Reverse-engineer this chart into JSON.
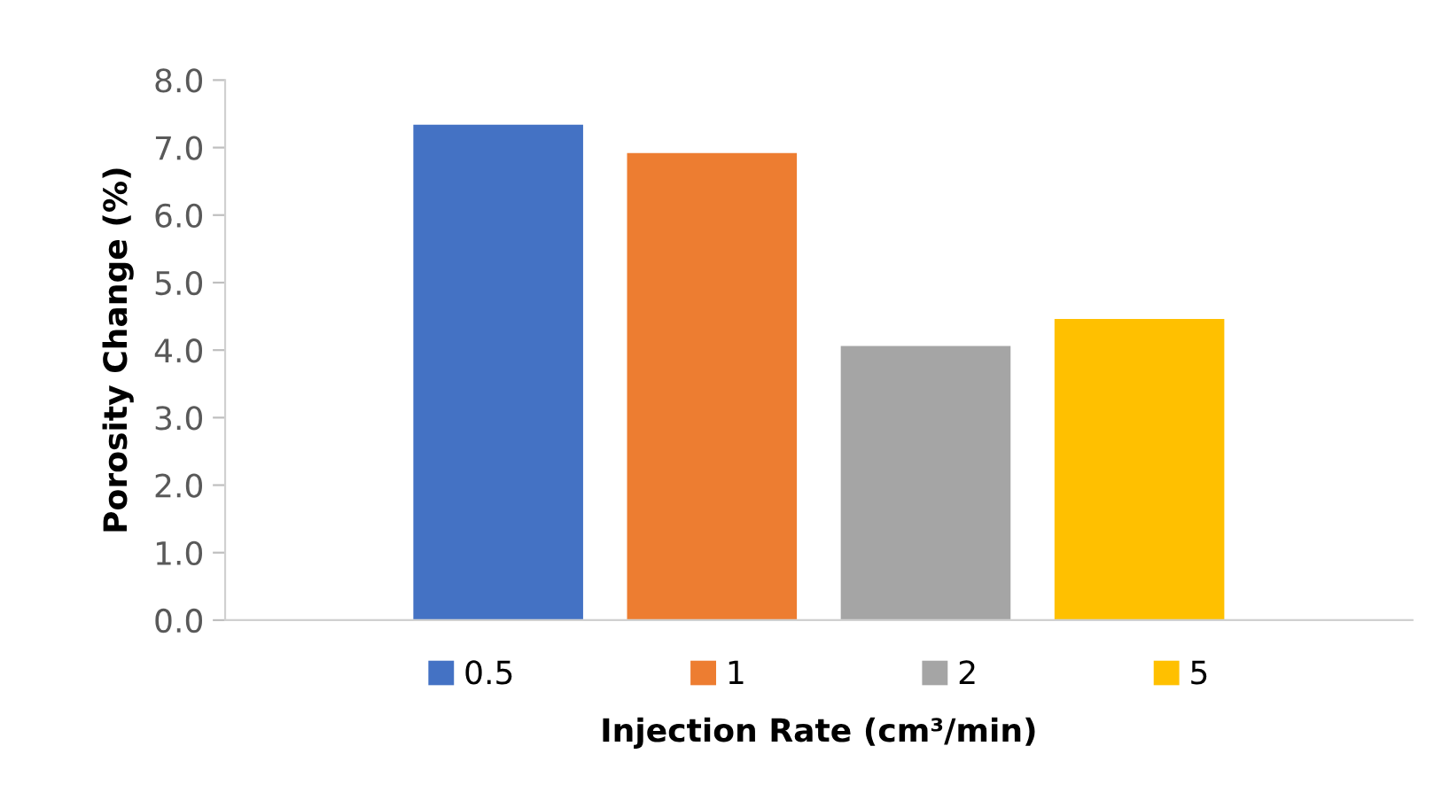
{
  "chart_data": {
    "type": "bar",
    "xlabel": "Injection Rate (cm³/min)",
    "ylabel": "Porosity Change (%)",
    "categories": [
      null
    ],
    "series": [
      {
        "name": "0.5",
        "color": "#4472c4",
        "values": [
          7.34
        ]
      },
      {
        "name": "1",
        "color": "#ed7d31",
        "values": [
          6.92
        ]
      },
      {
        "name": "2",
        "color": "#a5a5a5",
        "values": [
          4.06
        ]
      },
      {
        "name": "5",
        "color": "#ffc000",
        "values": [
          4.46
        ]
      }
    ],
    "ylim": [
      0,
      8
    ],
    "yticks": [
      {
        "value": 0,
        "label": "0.0"
      },
      {
        "value": 1,
        "label": "1.0"
      },
      {
        "value": 2,
        "label": "2.0"
      },
      {
        "value": 3,
        "label": "3.0"
      },
      {
        "value": 4,
        "label": "4.0"
      },
      {
        "value": 5,
        "label": "5.0"
      },
      {
        "value": 6,
        "label": "6.0"
      },
      {
        "value": 7,
        "label": "7.0"
      },
      {
        "value": 8,
        "label": "8.0"
      }
    ],
    "grid": false,
    "legend": "bottom"
  }
}
